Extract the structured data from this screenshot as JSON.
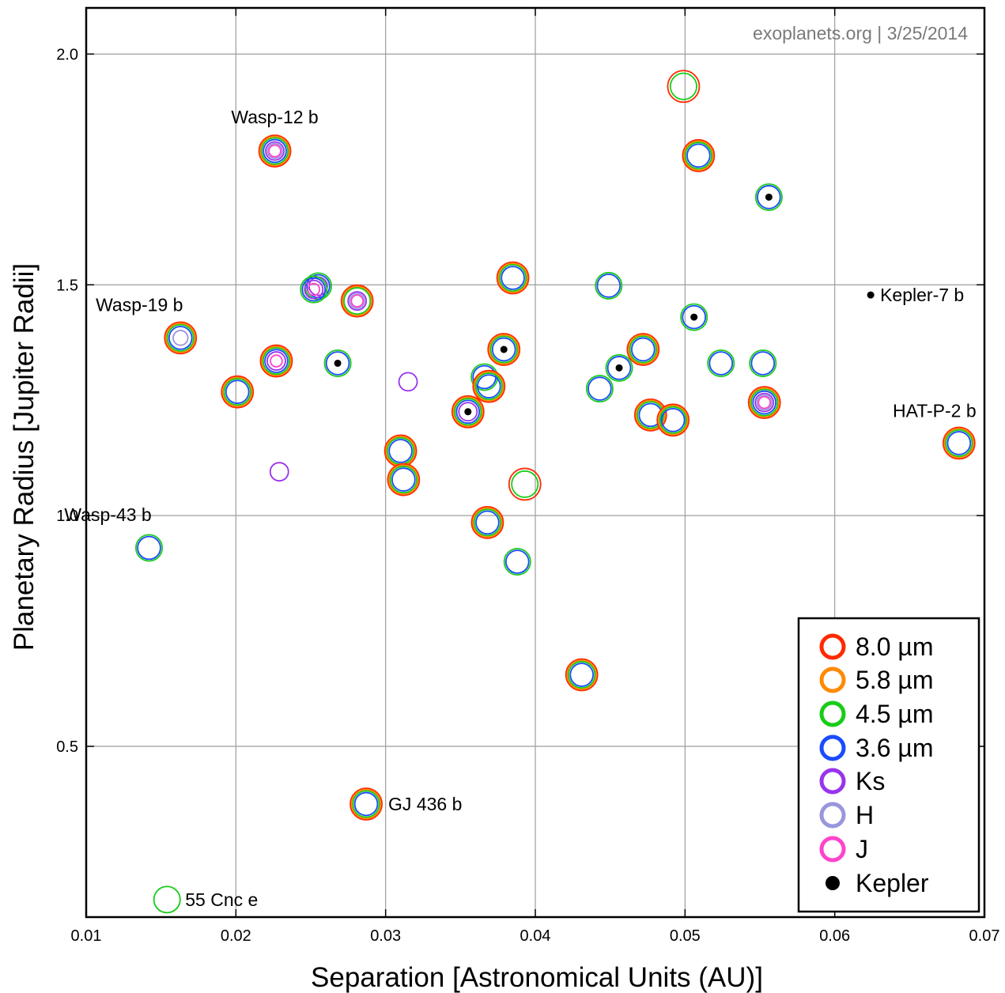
{
  "chart_data": {
    "type": "scatter",
    "credit": "exoplanets.org | 3/25/2014",
    "xlabel": "Separation [Astronomical Units (AU)]",
    "ylabel": "Planetary Radius [Jupiter Radii]",
    "xlim": [
      0.01,
      0.07
    ],
    "ylim": [
      0.13,
      2.1
    ],
    "xticks": [
      "0.01",
      "0.02",
      "0.03",
      "0.04",
      "0.05",
      "0.06",
      "0.07"
    ],
    "xtick_values": [
      0.01,
      0.02,
      0.03,
      0.04,
      0.05,
      0.06,
      0.07
    ],
    "yticks": [
      "0.5",
      "1.0",
      "1.5",
      "2.0"
    ],
    "ytick_values": [
      0.5,
      1.0,
      1.5,
      2.0
    ],
    "grid": true,
    "legend_position": "bottom-right",
    "legend": [
      {
        "name": "8.0 µm",
        "color": "#ff2a00",
        "kind": "ring",
        "band": "8.0"
      },
      {
        "name": "5.8 µm",
        "color": "#ff8a00",
        "kind": "ring",
        "band": "5.8"
      },
      {
        "name": "4.5 µm",
        "color": "#19cc19",
        "kind": "ring",
        "band": "4.5"
      },
      {
        "name": "3.6 µm",
        "color": "#1a4cff",
        "kind": "ring",
        "band": "3.6"
      },
      {
        "name": "Ks",
        "color": "#9933ee",
        "kind": "ring",
        "band": "Ks"
      },
      {
        "name": "H",
        "color": "#9a96dd",
        "kind": "ring",
        "band": "H"
      },
      {
        "name": "J",
        "color": "#ff44cc",
        "kind": "ring",
        "band": "J"
      },
      {
        "name": "Kepler",
        "color": "#000000",
        "kind": "dot",
        "band": "Kepler"
      }
    ],
    "planets": [
      {
        "label": "Wasp-12 b",
        "label_pos": "above",
        "x": 0.0226,
        "y": 1.79,
        "bands": [
          "8.0",
          "5.8",
          "4.5",
          "3.6",
          "Ks",
          "H",
          "J"
        ]
      },
      {
        "label": "Wasp-19 b",
        "label_pos": "above-left",
        "x": 0.0163,
        "y": 1.385,
        "bands": [
          "8.0",
          "5.8",
          "4.5",
          "3.6",
          "H"
        ]
      },
      {
        "label": "Wasp-43 b",
        "label_pos": "above-left",
        "x": 0.0142,
        "y": 0.93,
        "bands": [
          "4.5",
          "3.6"
        ]
      },
      {
        "label": "GJ 436 b",
        "label_pos": "right",
        "x": 0.0287,
        "y": 0.375,
        "bands": [
          "8.0",
          "5.8",
          "4.5",
          "3.6"
        ]
      },
      {
        "label": "55 Cnc e",
        "label_pos": "right",
        "x": 0.0154,
        "y": 0.168,
        "bands": [
          "4.5"
        ]
      },
      {
        "label": "Kepler-7 b",
        "label_pos": "right",
        "x": 0.0624,
        "y": 1.478,
        "bands": [
          "Kepler"
        ]
      },
      {
        "label": "HAT-P-2 b",
        "label_pos": "above-right",
        "x": 0.0683,
        "y": 1.157,
        "bands": [
          "8.0",
          "5.8",
          "4.5",
          "3.6"
        ]
      },
      {
        "label": "",
        "x": 0.0499,
        "y": 1.93,
        "bands": [
          "8.0",
          "4.5"
        ]
      },
      {
        "label": "",
        "x": 0.0509,
        "y": 1.78,
        "bands": [
          "8.0",
          "5.8",
          "4.5",
          "3.6"
        ]
      },
      {
        "label": "",
        "x": 0.0556,
        "y": 1.69,
        "bands": [
          "4.5",
          "3.6",
          "Kepler"
        ]
      },
      {
        "label": "",
        "x": 0.0385,
        "y": 1.515,
        "bands": [
          "8.0",
          "5.8",
          "4.5",
          "3.6"
        ]
      },
      {
        "label": "",
        "x": 0.0449,
        "y": 1.498,
        "bands": [
          "4.5",
          "3.6"
        ]
      },
      {
        "label": "",
        "x": 0.0255,
        "y": 1.497,
        "bands": [
          "4.5",
          "3.6",
          "Ks"
        ]
      },
      {
        "label": "",
        "x": 0.0252,
        "y": 1.49,
        "bands": [
          "4.5",
          "3.6",
          "Ks",
          "J"
        ]
      },
      {
        "label": "",
        "x": 0.0281,
        "y": 1.465,
        "bands": [
          "8.0",
          "5.8",
          "4.5",
          "Ks",
          "H",
          "J"
        ]
      },
      {
        "label": "",
        "x": 0.0506,
        "y": 1.43,
        "bands": [
          "4.5",
          "3.6",
          "Kepler"
        ]
      },
      {
        "label": "",
        "x": 0.0379,
        "y": 1.36,
        "bands": [
          "8.0",
          "5.8",
          "4.5",
          "3.6",
          "Kepler"
        ]
      },
      {
        "label": "",
        "x": 0.0472,
        "y": 1.36,
        "bands": [
          "8.0",
          "5.8",
          "4.5",
          "3.6"
        ]
      },
      {
        "label": "",
        "x": 0.0227,
        "y": 1.335,
        "bands": [
          "8.0",
          "5.8",
          "4.5",
          "3.6",
          "Ks",
          "J"
        ]
      },
      {
        "label": "",
        "x": 0.0268,
        "y": 1.33,
        "bands": [
          "4.5",
          "3.6",
          "Kepler"
        ]
      },
      {
        "label": "",
        "x": 0.0524,
        "y": 1.33,
        "bands": [
          "4.5",
          "3.6"
        ]
      },
      {
        "label": "",
        "x": 0.0552,
        "y": 1.33,
        "bands": [
          "4.5",
          "3.6"
        ]
      },
      {
        "label": "",
        "x": 0.0456,
        "y": 1.32,
        "bands": [
          "4.5",
          "3.6",
          "Kepler"
        ]
      },
      {
        "label": "",
        "x": 0.0315,
        "y": 1.29,
        "bands": [
          "Ks"
        ]
      },
      {
        "label": "",
        "x": 0.0366,
        "y": 1.3,
        "bands": [
          "4.5",
          "3.6"
        ]
      },
      {
        "label": "",
        "x": 0.0369,
        "y": 1.28,
        "bands": [
          "8.0",
          "5.8",
          "4.5",
          "3.6"
        ]
      },
      {
        "label": "",
        "x": 0.0443,
        "y": 1.275,
        "bands": [
          "4.5",
          "3.6"
        ]
      },
      {
        "label": "",
        "x": 0.0201,
        "y": 1.268,
        "bands": [
          "8.0",
          "5.8",
          "4.5",
          "3.6"
        ]
      },
      {
        "label": "",
        "x": 0.0553,
        "y": 1.245,
        "bands": [
          "8.0",
          "5.8",
          "4.5",
          "3.6",
          "Ks",
          "H",
          "J"
        ]
      },
      {
        "label": "",
        "x": 0.0355,
        "y": 1.225,
        "bands": [
          "8.0",
          "5.8",
          "4.5",
          "3.6",
          "Ks",
          "Kepler"
        ]
      },
      {
        "label": "",
        "x": 0.0477,
        "y": 1.218,
        "bands": [
          "8.0",
          "5.8",
          "4.5",
          "3.6"
        ]
      },
      {
        "label": "",
        "x": 0.0492,
        "y": 1.207,
        "bands": [
          "8.0",
          "5.8",
          "4.5",
          "3.6"
        ]
      },
      {
        "label": "",
        "x": 0.031,
        "y": 1.14,
        "bands": [
          "8.0",
          "5.8",
          "4.5",
          "3.6"
        ]
      },
      {
        "label": "",
        "x": 0.0312,
        "y": 1.078,
        "bands": [
          "8.0",
          "5.8",
          "4.5",
          "3.6"
        ]
      },
      {
        "label": "",
        "x": 0.0229,
        "y": 1.095,
        "bands": [
          "Ks"
        ]
      },
      {
        "label": "",
        "x": 0.0393,
        "y": 1.068,
        "bands": [
          "8.0",
          "4.5"
        ]
      },
      {
        "label": "",
        "x": 0.0368,
        "y": 0.985,
        "bands": [
          "8.0",
          "5.8",
          "4.5",
          "3.6"
        ]
      },
      {
        "label": "",
        "x": 0.0388,
        "y": 0.9,
        "bands": [
          "4.5",
          "3.6"
        ]
      },
      {
        "label": "",
        "x": 0.0431,
        "y": 0.655,
        "bands": [
          "8.0",
          "5.8",
          "4.5",
          "3.6"
        ]
      }
    ]
  }
}
